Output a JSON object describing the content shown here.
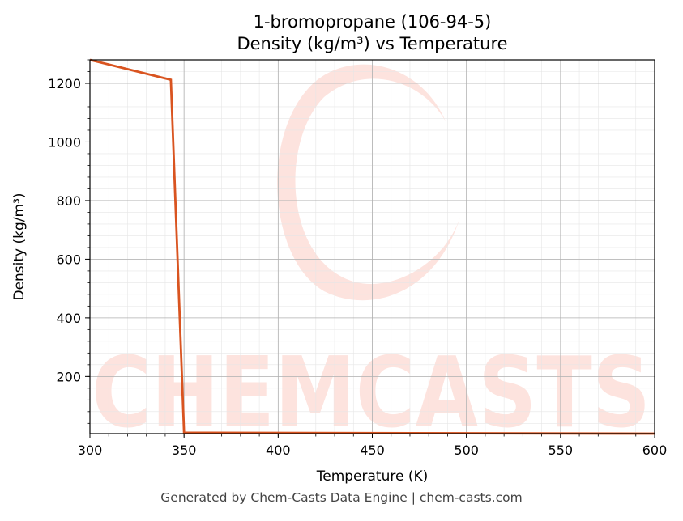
{
  "chart_data": {
    "type": "line",
    "title": "1-bromopropane (106-94-5)",
    "subtitle": "Density (kg/m³) vs Temperature",
    "xlabel": "Temperature (K)",
    "ylabel": "Density (kg/m³)",
    "xlim": [
      300,
      600
    ],
    "ylim": [
      5,
      1280
    ],
    "xticks": [
      300,
      350,
      400,
      450,
      500,
      550,
      600
    ],
    "yticks": [
      200,
      400,
      600,
      800,
      1000,
      1200
    ],
    "grid": true,
    "legend": "none",
    "series": [
      {
        "color": "#d95420",
        "x": [
          300,
          343,
          350,
          600
        ],
        "y": [
          1280,
          1212,
          8,
          5
        ]
      }
    ]
  },
  "watermark": {
    "text": "CHEMCASTS",
    "color": "#fde3de"
  },
  "footer": "Generated by Chem-Casts Data Engine | chem-casts.com"
}
